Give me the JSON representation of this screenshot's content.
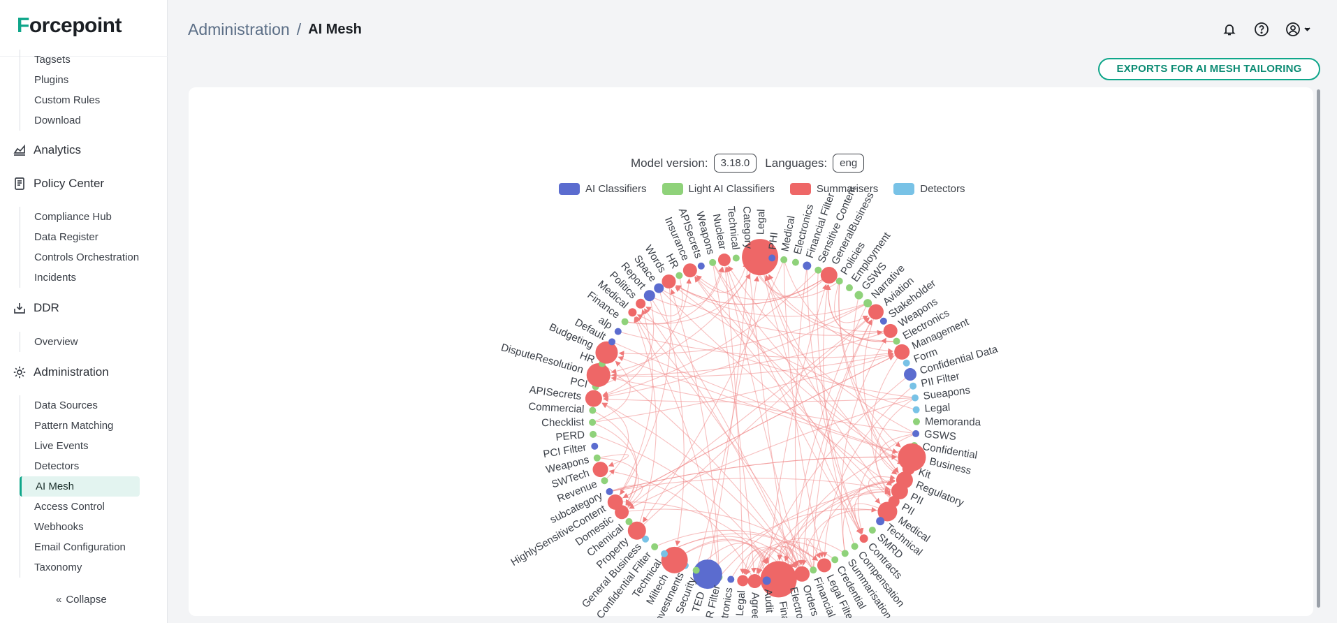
{
  "brand": {
    "logo_text_a": "F",
    "logo_text_b": "orcepoint"
  },
  "sidebar": {
    "top_items": [
      "Tagsets",
      "Plugins",
      "Custom Rules",
      "Download"
    ],
    "analytics": "Analytics",
    "policy_center": "Policy Center",
    "policy_items": [
      "Compliance Hub",
      "Data Register",
      "Controls Orchestration",
      "Incidents"
    ],
    "ddr": "DDR",
    "ddr_items": [
      "Overview"
    ],
    "administration": "Administration",
    "admin_items": [
      "Data Sources",
      "Pattern Matching",
      "Live Events",
      "Detectors",
      "AI Mesh",
      "Access Control",
      "Webhooks",
      "Email Configuration",
      "Taxonomy"
    ],
    "active_item": "AI Mesh",
    "collapse_label": "Collapse"
  },
  "header": {
    "breadcrumb_root": "Administration",
    "separator": "/",
    "breadcrumb_current": "AI Mesh"
  },
  "toolbar": {
    "export_label": "EXPORTS FOR AI MESH TAILORING"
  },
  "mesh": {
    "model_version_label": "Model version:",
    "model_version": "3.18.0",
    "languages_label": "Languages:",
    "language": "eng",
    "legend": [
      {
        "label": "AI Classifiers",
        "color": "#5b6ccf"
      },
      {
        "label": "Light AI Classifiers",
        "color": "#8fd27a"
      },
      {
        "label": "Summarisers",
        "color": "#ee6767"
      },
      {
        "label": "Detectors",
        "color": "#78c2e6"
      }
    ],
    "nodes": [
      {
        "label": "Legal",
        "type": "summariser",
        "size": 26
      },
      {
        "label": "PHI",
        "type": "ai",
        "size": 5
      },
      {
        "label": "Medical",
        "type": "light",
        "size": 5
      },
      {
        "label": "Electronics",
        "type": "light",
        "size": 5
      },
      {
        "label": "Financial Filter",
        "type": "ai",
        "size": 6
      },
      {
        "label": "Sensitive Content",
        "type": "light",
        "size": 5
      },
      {
        "label": "GeneralBusiness",
        "type": "summariser",
        "size": 12
      },
      {
        "label": "Policies",
        "type": "light",
        "size": 5
      },
      {
        "label": "Employment",
        "type": "light",
        "size": 5
      },
      {
        "label": "GSWS",
        "type": "light",
        "size": 6
      },
      {
        "label": "Narrative",
        "type": "light",
        "size": 6
      },
      {
        "label": "Aviation",
        "type": "summariser",
        "size": 11
      },
      {
        "label": "Stakeholder",
        "type": "ai",
        "size": 5
      },
      {
        "label": "Weapons",
        "type": "summariser",
        "size": 10
      },
      {
        "label": "Electronics",
        "type": "light",
        "size": 5
      },
      {
        "label": "Management",
        "type": "summariser",
        "size": 11
      },
      {
        "label": "Form",
        "type": "detector",
        "size": 5
      },
      {
        "label": "Confidential Data",
        "type": "ai",
        "size": 9
      },
      {
        "label": "PII Filter",
        "type": "detector",
        "size": 5
      },
      {
        "label": "Sueapons",
        "type": "detector",
        "size": 5
      },
      {
        "label": "Legal",
        "type": "detector",
        "size": 5
      },
      {
        "label": "Memoranda",
        "type": "light",
        "size": 5
      },
      {
        "label": "GSWS",
        "type": "ai",
        "size": 5
      },
      {
        "label": "Confidential",
        "type": "light",
        "size": 5
      },
      {
        "label": "Business",
        "type": "summariser",
        "size": 20
      },
      {
        "label": "Kit",
        "type": "summariser",
        "size": 9
      },
      {
        "label": "Regulatory",
        "type": "summariser",
        "size": 12
      },
      {
        "label": "PII",
        "type": "summariser",
        "size": 12
      },
      {
        "label": "PII",
        "type": "summariser",
        "size": 8
      },
      {
        "label": "Medical",
        "type": "summariser",
        "size": 14
      },
      {
        "label": "Technical",
        "type": "ai",
        "size": 6
      },
      {
        "label": "SMRD",
        "type": "light",
        "size": 5
      },
      {
        "label": "Contracts",
        "type": "summariser",
        "size": 6
      },
      {
        "label": "Compensation",
        "type": "light",
        "size": 5
      },
      {
        "label": "Summarisation",
        "type": "light",
        "size": 5
      },
      {
        "label": "Credential",
        "type": "light",
        "size": 5
      },
      {
        "label": "Legal Filter",
        "type": "summariser",
        "size": 10
      },
      {
        "label": "Financial",
        "type": "light",
        "size": 5
      },
      {
        "label": "Orders",
        "type": "summariser",
        "size": 11
      },
      {
        "label": "Electronics",
        "type": "summariser",
        "size": 9
      },
      {
        "label": "Financial",
        "type": "summariser",
        "size": 26
      },
      {
        "label": "Audit",
        "type": "ai",
        "size": 6
      },
      {
        "label": "Agreement",
        "type": "summariser",
        "size": 10
      },
      {
        "label": "Legal",
        "type": "summariser",
        "size": 8
      },
      {
        "label": "Electronics",
        "type": "ai",
        "size": 5
      },
      {
        "label": "HR Filter",
        "type": "light",
        "size": 5
      },
      {
        "label": "TED",
        "type": "ai",
        "size": 21
      },
      {
        "label": "Security",
        "type": "light",
        "size": 5
      },
      {
        "label": "Investments",
        "type": "detector",
        "size": 5
      },
      {
        "label": "Miltech",
        "type": "summariser",
        "size": 19
      },
      {
        "label": "Technical",
        "type": "detector",
        "size": 5
      },
      {
        "label": "Confidential Filter",
        "type": "light",
        "size": 5
      },
      {
        "label": "General Business",
        "type": "detector",
        "size": 5
      },
      {
        "label": "Property",
        "type": "summariser",
        "size": 13
      },
      {
        "label": "Chemical",
        "type": "light",
        "size": 5
      },
      {
        "label": "Domestic",
        "type": "summariser",
        "size": 10
      },
      {
        "label": "HighlySensitiveContent",
        "type": "summariser",
        "size": 11
      },
      {
        "label": "subcategory",
        "type": "ai",
        "size": 5
      },
      {
        "label": "Revenue",
        "type": "light",
        "size": 5
      },
      {
        "label": "SWTech",
        "type": "summariser",
        "size": 11
      },
      {
        "label": "Weapons",
        "type": "light",
        "size": 5
      },
      {
        "label": "PCI Filter",
        "type": "ai",
        "size": 5
      },
      {
        "label": "PERD",
        "type": "light",
        "size": 5
      },
      {
        "label": "Checklist",
        "type": "light",
        "size": 5
      },
      {
        "label": "Commercial",
        "type": "light",
        "size": 5
      },
      {
        "label": "APISecrets",
        "type": "summariser",
        "size": 12
      },
      {
        "label": "PCI",
        "type": "light",
        "size": 5
      },
      {
        "label": "DisputeResolution",
        "type": "summariser",
        "size": 17
      },
      {
        "label": "HR",
        "type": "light",
        "size": 5
      },
      {
        "label": "Budgeting",
        "type": "summariser",
        "size": 16
      },
      {
        "label": "Default",
        "type": "ai",
        "size": 5
      },
      {
        "label": "alp",
        "type": "ai",
        "size": 5
      },
      {
        "label": "Finance",
        "type": "light",
        "size": 5
      },
      {
        "label": "Medical",
        "type": "summariser",
        "size": 6
      },
      {
        "label": "Politics",
        "type": "summariser",
        "size": 7
      },
      {
        "label": "Report",
        "type": "ai",
        "size": 8
      },
      {
        "label": "Space",
        "type": "ai",
        "size": 7
      },
      {
        "label": "Words",
        "type": "summariser",
        "size": 10
      },
      {
        "label": "HR",
        "type": "light",
        "size": 5
      },
      {
        "label": "Insurance",
        "type": "summariser",
        "size": 10
      },
      {
        "label": "APISecrets",
        "type": "ai",
        "size": 5
      },
      {
        "label": "Weapons",
        "type": "light",
        "size": 5
      },
      {
        "label": "Nuclear",
        "type": "summariser",
        "size": 9
      },
      {
        "label": "Technical",
        "type": "light",
        "size": 5
      },
      {
        "label": "Category",
        "type": "summariser",
        "size": 6
      }
    ]
  }
}
